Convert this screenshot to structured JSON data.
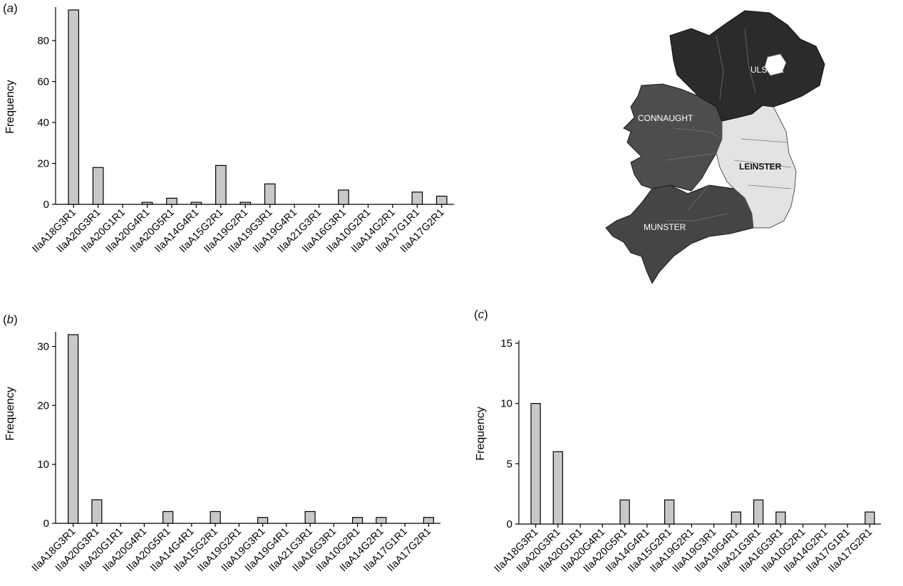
{
  "panels": {
    "a": {
      "label_open": "(",
      "label_letter": "a",
      "label_close": ")"
    },
    "b": {
      "label_open": "(",
      "label_letter": "b",
      "label_close": ")"
    },
    "c": {
      "label_open": "(",
      "label_letter": "c",
      "label_close": ")"
    }
  },
  "colors": {
    "bar_fill": "#c8c8c8",
    "bar_stroke": "#000000",
    "axis": "#000000",
    "ulster": "#2b2b2b",
    "connaught": "#4a4a4a",
    "munster": "#444444",
    "leinster": "#e4e4e4"
  },
  "map": {
    "provinces": [
      "ULSTER",
      "CONNAUGHT",
      "LEINSTER",
      "MUNSTER"
    ]
  },
  "chart_data": [
    {
      "type": "bar",
      "panel": "a",
      "ylabel": "Frequency",
      "ylim": [
        0,
        95
      ],
      "yticks": [
        0,
        20,
        40,
        60,
        80
      ],
      "categories": [
        "IIaA18G3R1",
        "IIaA20G3R1",
        "IIaA20G1R1",
        "IIaA20G4R1",
        "IIaA20G5R1",
        "IIaA14G4R1",
        "IIaA15G2R1",
        "IIaA19G2R1",
        "IIaA19G3R1",
        "IIaA19G4R1",
        "IIaA21G3R1",
        "IIaA16G3R1",
        "IIaA10G2R1",
        "IIaA14G2R1",
        "IIaA17G1R1",
        "IIaA17G2R1"
      ],
      "values": [
        95,
        18,
        0,
        1,
        3,
        1,
        19,
        1,
        10,
        0,
        0,
        7,
        0,
        0,
        6,
        4
      ]
    },
    {
      "type": "bar",
      "panel": "b",
      "ylabel": "Frequency",
      "ylim": [
        0,
        32
      ],
      "yticks": [
        0,
        10,
        20,
        30
      ],
      "categories": [
        "IIaA18G3R1",
        "IIaA20G3R1",
        "IIaA20G1R1",
        "IIaA20G4R1",
        "IIaA20G5R1",
        "IIaA14G4R1",
        "IIaA15G2R1",
        "IIaA19G2R1",
        "IIaA19G3R1",
        "IIaA19G4R1",
        "IIaA21G3R1",
        "IIaA16G3R1",
        "IIaA10G2R1",
        "IIaA14G2R1",
        "IIaA17G1R1",
        "IIaA17G2R1"
      ],
      "values": [
        32,
        4,
        0,
        0,
        2,
        0,
        2,
        0,
        1,
        0,
        2,
        0,
        1,
        1,
        0,
        1
      ]
    },
    {
      "type": "bar",
      "panel": "c",
      "ylabel": "Frequency",
      "ylim": [
        0,
        15
      ],
      "yticks": [
        0,
        5,
        10,
        15
      ],
      "categories": [
        "IIaA18G3R1",
        "IIaA20G3R1",
        "IIaA20G1R1",
        "IIaA20G4R1",
        "IIaA20G5R1",
        "IIaA14G4R1",
        "IIaA15G2R1",
        "IIaA19G2R1",
        "IIaA19G3R1",
        "IIaA19G4R1",
        "IIaA21G3R1",
        "IIaA16G3R1",
        "IIaA10G2R1",
        "IIaA14G2R1",
        "IIaA17G1R1",
        "IIaA17G2R1"
      ],
      "values": [
        10,
        6,
        0,
        0,
        2,
        0,
        2,
        0,
        0,
        1,
        2,
        1,
        0,
        0,
        0,
        1
      ]
    }
  ]
}
